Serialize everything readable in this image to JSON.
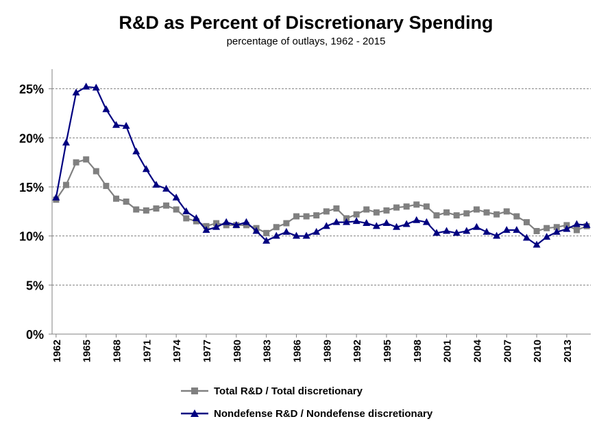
{
  "chart_data": {
    "type": "line",
    "title": "R&D as Percent of Discretionary Spending",
    "subtitle": "percentage of outlays,  1962 - 2015",
    "xlabel": "",
    "ylabel": "",
    "ylim": [
      0,
      27
    ],
    "y_ticks": [
      0,
      5,
      10,
      15,
      20,
      25
    ],
    "y_tick_labels": [
      "0%",
      "5%",
      "10%",
      "15%",
      "20%",
      "25%"
    ],
    "x_tick_labels": [
      "1962",
      "1965",
      "1968",
      "1971",
      "1974",
      "1977",
      "1980",
      "1983",
      "1986",
      "1989",
      "1992",
      "1995",
      "1998",
      "2001",
      "2004",
      "2007",
      "2010",
      "2013"
    ],
    "x": [
      1962,
      1963,
      1964,
      1965,
      1966,
      1967,
      1968,
      1969,
      1970,
      1971,
      1972,
      1973,
      1974,
      1975,
      1976,
      1977,
      1978,
      1979,
      1980,
      1981,
      1982,
      1983,
      1984,
      1985,
      1986,
      1987,
      1988,
      1989,
      1990,
      1991,
      1992,
      1993,
      1994,
      1995,
      1996,
      1997,
      1998,
      1999,
      2000,
      2001,
      2002,
      2003,
      2004,
      2005,
      2006,
      2007,
      2008,
      2009,
      2010,
      2011,
      2012,
      2013,
      2014,
      2015
    ],
    "series": [
      {
        "name": "Total R&D / Total discretionary",
        "color": "#808080",
        "marker": "square",
        "values": [
          13.7,
          15.2,
          17.5,
          17.8,
          16.6,
          15.1,
          13.8,
          13.5,
          12.7,
          12.6,
          12.8,
          13.1,
          12.7,
          11.8,
          11.5,
          11.0,
          11.3,
          11.1,
          11.1,
          11.1,
          10.8,
          10.3,
          10.9,
          11.3,
          12.0,
          12.0,
          12.1,
          12.5,
          12.8,
          11.8,
          12.2,
          12.7,
          12.4,
          12.6,
          12.9,
          13.0,
          13.2,
          13.0,
          12.1,
          12.4,
          12.1,
          12.3,
          12.7,
          12.4,
          12.2,
          12.5,
          12.0,
          11.4,
          10.5,
          10.8,
          10.9,
          11.1,
          10.6,
          11.0
        ]
      },
      {
        "name": "Nondefense R&D / Nondefense discretionary",
        "color": "#000080",
        "marker": "triangle",
        "values": [
          13.9,
          19.5,
          24.6,
          25.2,
          25.1,
          22.9,
          21.3,
          21.2,
          18.6,
          16.8,
          15.2,
          14.8,
          13.9,
          12.5,
          11.8,
          10.6,
          10.9,
          11.4,
          11.1,
          11.4,
          10.5,
          9.5,
          10.0,
          10.4,
          10.0,
          10.0,
          10.4,
          11.0,
          11.4,
          11.4,
          11.5,
          11.3,
          11.0,
          11.3,
          10.9,
          11.2,
          11.6,
          11.4,
          10.3,
          10.5,
          10.3,
          10.5,
          10.9,
          10.4,
          10.0,
          10.6,
          10.6,
          9.8,
          9.1,
          9.9,
          10.4,
          10.7,
          11.2,
          11.1
        ]
      }
    ]
  }
}
